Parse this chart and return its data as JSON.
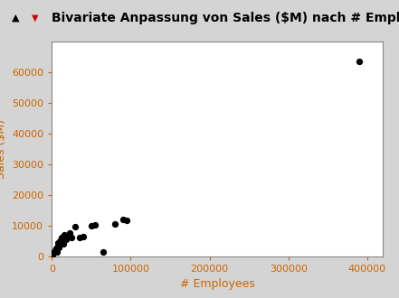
{
  "title": "Bivariate Anpassung von Sales ($M) nach # Employees",
  "xlabel": "# Employees",
  "ylabel": "Sales ($M)",
  "x": [
    1000,
    2000,
    3000,
    4000,
    5000,
    6000,
    7000,
    8000,
    9000,
    10000,
    12000,
    14000,
    16000,
    18000,
    20000,
    22000,
    25000,
    30000,
    35000,
    40000,
    50000,
    55000,
    65000,
    80000,
    90000,
    95000,
    390000
  ],
  "y": [
    500,
    1000,
    1500,
    2000,
    2500,
    1500,
    3000,
    4500,
    2800,
    5000,
    6000,
    4000,
    7000,
    5500,
    6500,
    7500,
    6000,
    9800,
    6200,
    6500,
    10000,
    10300,
    1500,
    10500,
    12000,
    11800,
    63500
  ],
  "xlim": [
    0,
    420000
  ],
  "ylim": [
    0,
    70000
  ],
  "xticks": [
    0,
    100000,
    200000,
    300000,
    400000
  ],
  "yticks": [
    0,
    10000,
    20000,
    30000,
    40000,
    50000,
    60000
  ],
  "dot_color": "#000000",
  "dot_size": 18,
  "outer_bg": "#d4d4d4",
  "plot_bg_color": "#ffffff",
  "tick_color": "#cc6600",
  "label_color": "#cc6600",
  "title_fontsize": 10,
  "axis_label_fontsize": 9,
  "tick_fontsize": 8,
  "spine_color": "#888888"
}
